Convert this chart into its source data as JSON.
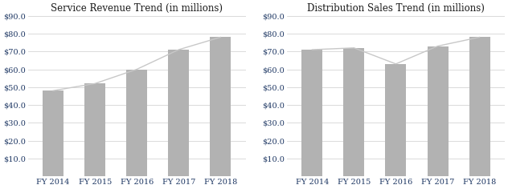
{
  "chart1": {
    "title": "Service Revenue Trend (in millions)",
    "categories": [
      "FY 2014",
      "FY 2015",
      "FY 2016",
      "FY 2017",
      "FY 2018"
    ],
    "bar_values": [
      48.0,
      52.0,
      60.0,
      71.0,
      78.0
    ],
    "line_values": [
      48.0,
      52.0,
      60.0,
      71.0,
      78.0
    ],
    "bar_color": "#b2b2b2",
    "line_color": "#c8c8c8",
    "ylim": [
      0,
      90
    ],
    "yticks": [
      10,
      20,
      30,
      40,
      50,
      60,
      70,
      80,
      90
    ]
  },
  "chart2": {
    "title": "Distribution Sales Trend (in millions)",
    "categories": [
      "FY 2014",
      "FY 2015",
      "FY 2016",
      "FY 2017",
      "FY 2018"
    ],
    "bar_values": [
      71.0,
      72.0,
      63.0,
      73.0,
      78.0
    ],
    "line_values": [
      71.0,
      72.0,
      63.0,
      73.0,
      78.0
    ],
    "bar_color": "#b2b2b2",
    "line_color": "#c8c8c8",
    "ylim": [
      0,
      90
    ],
    "yticks": [
      10,
      20,
      30,
      40,
      50,
      60,
      70,
      80,
      90
    ]
  },
  "background_color": "#ffffff",
  "title_fontsize": 8.5,
  "tick_fontsize": 7,
  "tick_label_color": "#1f3864",
  "title_color": "#1a1a1a",
  "figure_width": 6.32,
  "figure_height": 2.36,
  "dpi": 100
}
